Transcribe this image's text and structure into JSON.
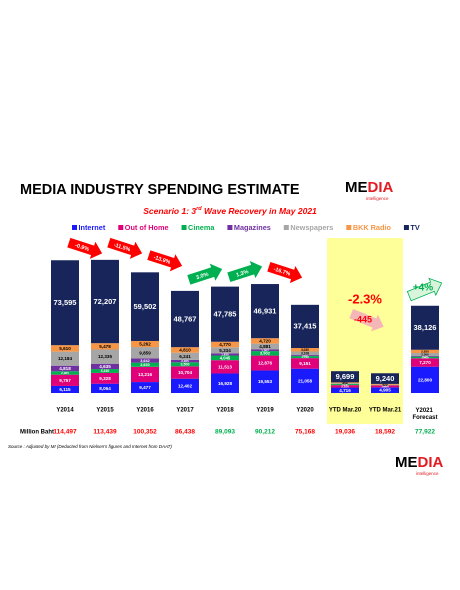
{
  "chart_data": {
    "type": "stacked_bar",
    "title": "MEDIA INDUSTRY SPENDING ESTIMATE",
    "logo": {
      "part1": "ME",
      "part2": "DIA",
      "tagline": "intelligence"
    },
    "subtitle": [
      "Scenario 1: 3",
      "rd",
      " Wave Recovery in May 2021"
    ],
    "categories": [
      "Y2014",
      "Y2015",
      "Y2016",
      "Y2017",
      "Y2018",
      "Y2019",
      "Y2020",
      "YTD Mar.20",
      "YTD Mar.21",
      "Y2021 Forecast"
    ],
    "highlight": [
      7,
      8
    ],
    "ylim": [
      0,
      130000
    ],
    "series": [
      {
        "name": "Internet",
        "color": "#1a1aff",
        "values": [
          6115,
          8064,
          9477,
          12402,
          16928,
          19553,
          21058,
          4716,
          4905,
          22800
        ],
        "value_labels": [
          "6,115",
          "8,064",
          "9,477",
          "12,402",
          "16,928",
          "19,553",
          "21,058",
          "4,716",
          "4,905",
          "22,800"
        ]
      },
      {
        "name": "Out of Home",
        "color": "#e0007a",
        "values": [
          9757,
          9328,
          13216,
          10704,
          11513,
          12876,
          9151,
          2100,
          1650,
          7270
        ],
        "value_labels": [
          "9,757",
          "9,328",
          "13,216",
          "10,704",
          "11,513",
          "12,876",
          "9,151",
          "2,100",
          "1,650",
          "7,270"
        ]
      },
      {
        "name": "Cinema",
        "color": "#00b050",
        "values": [
          2965,
          3340,
          3630,
          3500,
          4045,
          3902,
          1790,
          920,
          130,
          1400
        ],
        "value_labels": [
          "2,965",
          "3,340",
          "3,630",
          "3,500",
          "4,045",
          "3,902",
          "1,790",
          "920",
          "130",
          "1,400"
        ]
      },
      {
        "name": "Magazines",
        "color": "#7030a0",
        "values": [
          4818,
          4635,
          3642,
          2065,
          1830,
          1567,
          860,
          203,
          140,
          620
        ],
        "value_labels": [
          "4,818",
          "4,635",
          "3,642",
          "2,065",
          "1,830",
          "1,567",
          "860",
          "203",
          "140",
          "620"
        ]
      },
      {
        "name": "Newspapers",
        "color": "#a6a6a6",
        "values": [
          12184,
          12335,
          9859,
          6241,
          5334,
          4881,
          3108,
          614,
          420,
          2560
        ],
        "value_labels": [
          "12,184",
          "12,335",
          "9,859",
          "6,241",
          "5,334",
          "4,881",
          "3,108",
          "614",
          "420",
          "2,560"
        ]
      },
      {
        "name": "BKK Radio",
        "color": "#f79646",
        "values": [
          5610,
          5478,
          5262,
          4810,
          4770,
          4720,
          3030,
          650,
          620,
          2830
        ],
        "value_labels": [
          "5,610",
          "5,478",
          "5,262",
          "4,810",
          "4,770",
          "4,720",
          "3,030",
          "650",
          "620",
          "2,830"
        ]
      },
      {
        "name": "TV",
        "color": "#17255a",
        "values": [
          73595,
          72207,
          59502,
          48767,
          47785,
          46931,
          37415,
          9699,
          9240,
          38126
        ],
        "value_labels": [
          "73,595",
          "72,207",
          "59,502",
          "48,767",
          "47,785",
          "46,931",
          "37,415",
          "9,699",
          "9,240",
          "38,126"
        ]
      }
    ],
    "totals": {
      "label": "Million Baht",
      "values": [
        114497,
        113439,
        100352,
        86438,
        89093,
        90212,
        75168,
        19036,
        18592,
        77922
      ],
      "value_labels": [
        "114,497",
        "113,439",
        "100,352",
        "86,438",
        "89,093",
        "90,212",
        "75,168",
        "19,036",
        "18,592",
        "77,922"
      ],
      "colors": [
        "#ff0000",
        "#ff0000",
        "#ff0000",
        "#ff0000",
        "#00b050",
        "#00b050",
        "#ff0000",
        "#ff0000",
        "#ff0000",
        "#00b050"
      ]
    },
    "annotations": [
      {
        "text": "-0.9%",
        "color": "#ff0000"
      },
      {
        "text": "-11.5%",
        "color": "#ff0000"
      },
      {
        "text": "-13.9%",
        "color": "#ff0000"
      },
      {
        "text": "3.0%",
        "color": "#00b050"
      },
      {
        "text": "1.3%",
        "color": "#00b050"
      },
      {
        "text": "-16.7%",
        "color": "#ff0000"
      },
      {
        "text": "-2.3%",
        "color": "#ff0000"
      },
      {
        "text": "-445",
        "color": "#ff0000"
      },
      {
        "text": "+4%",
        "color": "#00b050"
      }
    ],
    "source": "Source :  Adjusted by MI (Deducted  from Nielsen's figures and Internet from DAAT)"
  }
}
